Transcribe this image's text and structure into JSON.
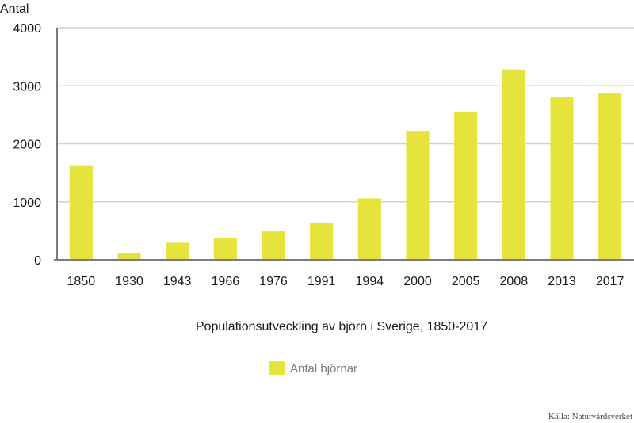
{
  "chart_data": {
    "type": "bar",
    "ylabel": "Antal",
    "xlabel": "Populationsutveckling av björn i Sverige, 1850-2017",
    "categories": [
      "1850",
      "1930",
      "1943",
      "1966",
      "1976",
      "1991",
      "1994",
      "2000",
      "2005",
      "2008",
      "2013",
      "2017"
    ],
    "series": [
      {
        "name": "Antal björnar",
        "values": [
          1630,
          110,
          295,
          380,
          490,
          640,
          1060,
          2210,
          2540,
          3280,
          2800,
          2870
        ],
        "color": "#e6e43c"
      }
    ],
    "ylim": [
      0,
      4000
    ],
    "yticks": [
      0,
      1000,
      2000,
      3000,
      4000
    ],
    "grid": true,
    "legend_position": "bottom-center"
  },
  "source": "Källa: Naturvårdsverket"
}
